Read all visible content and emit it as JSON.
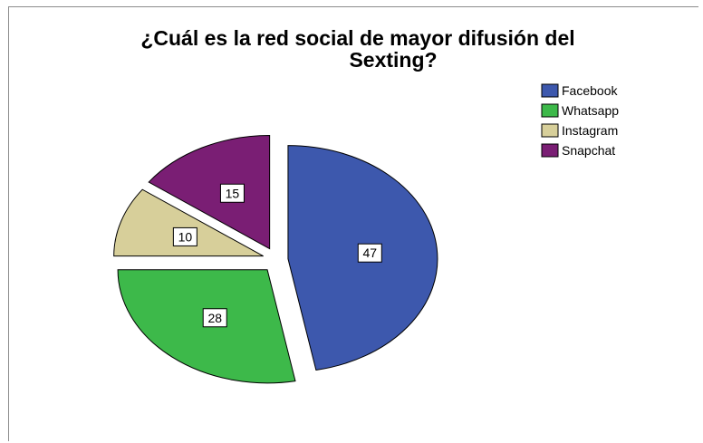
{
  "chart_data": {
    "type": "pie",
    "title": "¿Cuál es la red social de mayor difusión del Sexting?",
    "title_lines": [
      "¿Cuál es la red social de mayor difusión del",
      "Sexting?"
    ],
    "labels": [
      "Facebook",
      "Whatsapp",
      "Instagram",
      "Snapchat"
    ],
    "values": [
      47,
      28,
      10,
      15
    ],
    "colors": [
      "#3d58ad",
      "#3db94a",
      "#d7cf9a",
      "#7a1e74"
    ],
    "exploded": true,
    "legend_position": "top-right"
  }
}
